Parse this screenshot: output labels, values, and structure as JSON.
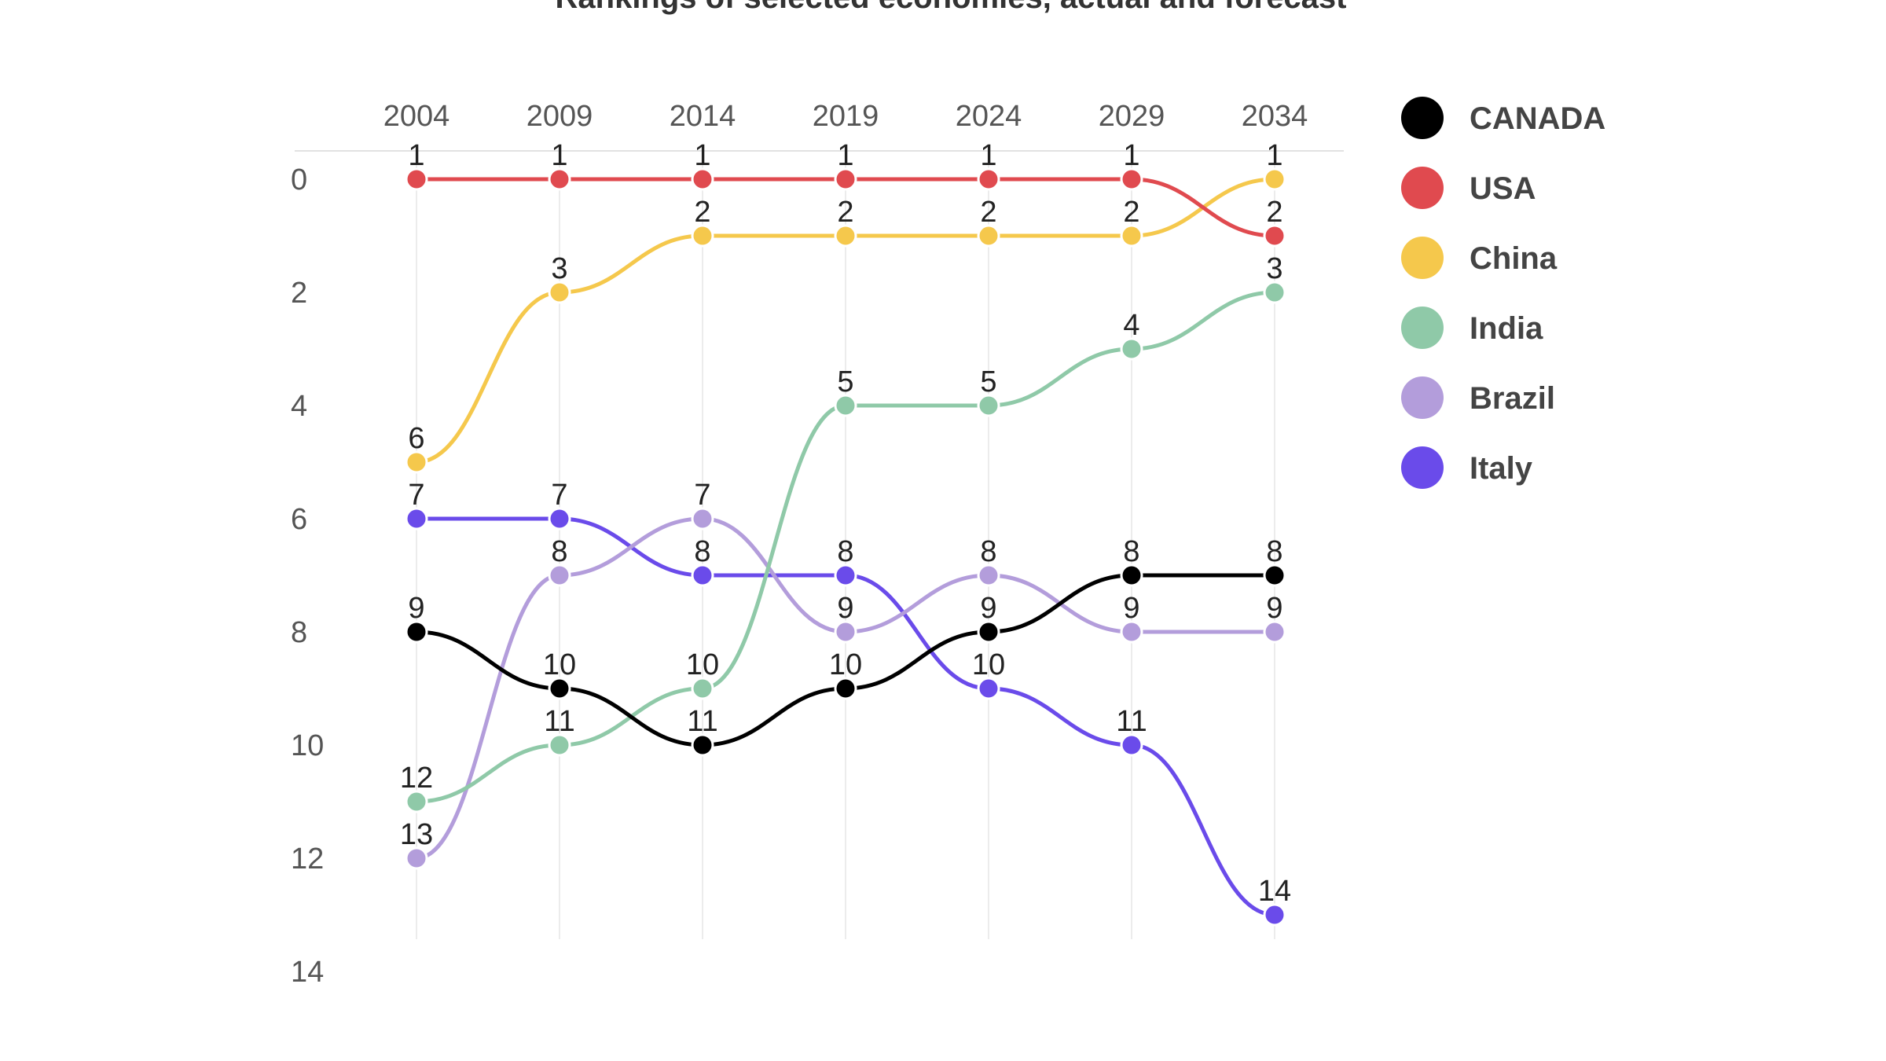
{
  "chart_data": {
    "type": "line",
    "title": "Rankings of selected economies, actual and forecast",
    "xlabel": "",
    "ylabel": "",
    "x": [
      "2004",
      "2009",
      "2014",
      "2019",
      "2024",
      "2029",
      "2034"
    ],
    "y_ticks": [
      0,
      2,
      4,
      6,
      8,
      10,
      12,
      14
    ],
    "ylim": [
      0,
      14
    ],
    "y_inverted": true,
    "legend_position": "right",
    "series": [
      {
        "name": "CANADA",
        "color": "#000000",
        "values": [
          9,
          10,
          11,
          10,
          9,
          8,
          8
        ]
      },
      {
        "name": "USA",
        "color": "#e04a4f",
        "values": [
          1,
          1,
          1,
          1,
          1,
          1,
          2
        ]
      },
      {
        "name": "China",
        "color": "#f5c84c",
        "values": [
          6,
          3,
          2,
          2,
          2,
          2,
          1
        ]
      },
      {
        "name": "India",
        "color": "#8fc9a8",
        "values": [
          12,
          11,
          10,
          5,
          5,
          4,
          3
        ]
      },
      {
        "name": "Brazil",
        "color": "#b39ddb",
        "values": [
          13,
          8,
          7,
          9,
          8,
          9,
          9
        ]
      },
      {
        "name": "Italy",
        "color": "#6a4bea",
        "values": [
          7,
          7,
          8,
          8,
          10,
          11,
          14
        ]
      }
    ]
  }
}
